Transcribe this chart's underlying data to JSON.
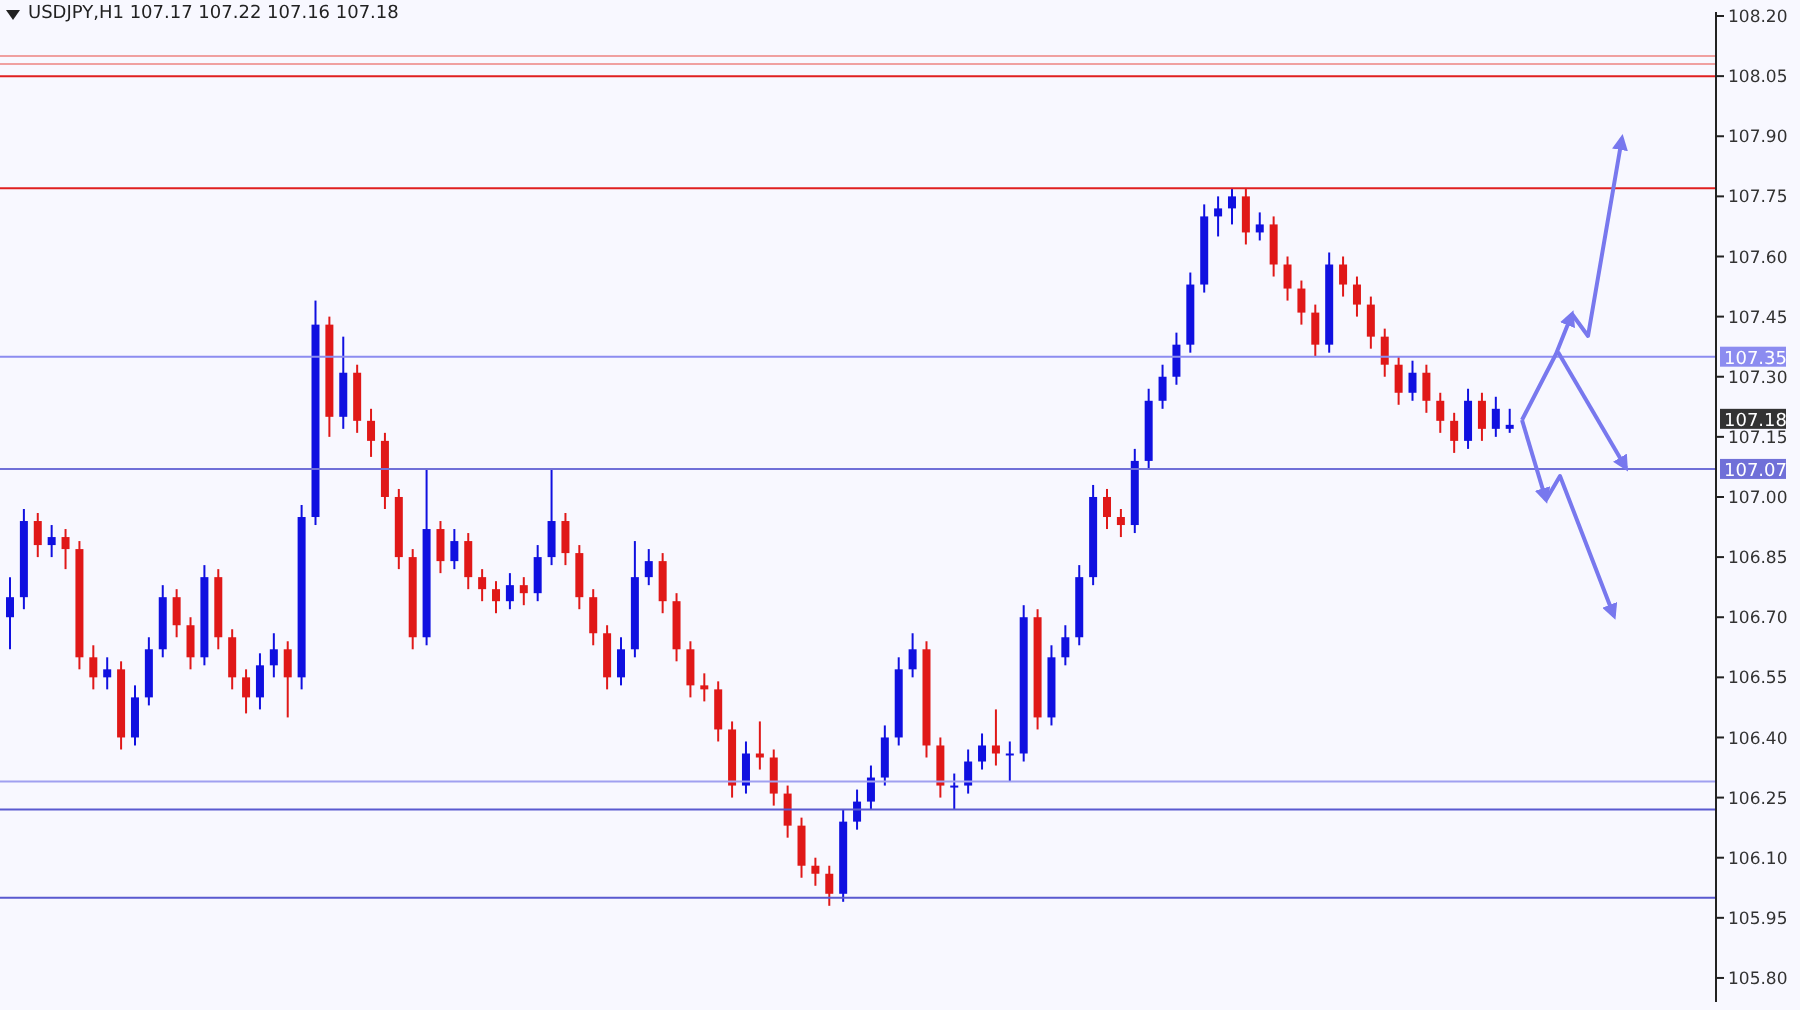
{
  "chart_data": {
    "type": "candlestick",
    "title": "USDJPY,H1  107.17 107.22 107.16 107.18",
    "categories": [
      null,
      null,
      null,
      null,
      null,
      null,
      null,
      null,
      null,
      null,
      null,
      null,
      null,
      null,
      null,
      null,
      null,
      null,
      null,
      null,
      null,
      null,
      null,
      null,
      null,
      null,
      null,
      null,
      null,
      null,
      null,
      null,
      null,
      null,
      null,
      null,
      null,
      null,
      null,
      null,
      null,
      null,
      null,
      null,
      null,
      null,
      null,
      null,
      null,
      null,
      null,
      null,
      null,
      null,
      null,
      null,
      null,
      null,
      null,
      null,
      null,
      null,
      null,
      null,
      null,
      null,
      null,
      null,
      null,
      null,
      null,
      null,
      null,
      null,
      null,
      null,
      null,
      null,
      null,
      null,
      null,
      null,
      null,
      null,
      null,
      null,
      null,
      null,
      null,
      null,
      null,
      null,
      null,
      null,
      null,
      null,
      null,
      null,
      null,
      null,
      null,
      null,
      null,
      null,
      null,
      null,
      null,
      null,
      null,
      null,
      null,
      null,
      null,
      null,
      null,
      null,
      null,
      null,
      null,
      null,
      null,
      null,
      null
    ],
    "ohlc": [
      [
        106.7,
        106.8,
        106.62,
        106.75
      ],
      [
        106.75,
        106.97,
        106.72,
        106.94
      ],
      [
        106.94,
        106.96,
        106.85,
        106.88
      ],
      [
        106.88,
        106.93,
        106.85,
        106.9
      ],
      [
        106.9,
        106.92,
        106.82,
        106.87
      ],
      [
        106.87,
        106.89,
        106.57,
        106.6
      ],
      [
        106.6,
        106.63,
        106.52,
        106.55
      ],
      [
        106.55,
        106.6,
        106.52,
        106.57
      ],
      [
        106.57,
        106.59,
        106.37,
        106.4
      ],
      [
        106.4,
        106.53,
        106.38,
        106.5
      ],
      [
        106.5,
        106.65,
        106.48,
        106.62
      ],
      [
        106.62,
        106.78,
        106.6,
        106.75
      ],
      [
        106.75,
        106.77,
        106.65,
        106.68
      ],
      [
        106.68,
        106.7,
        106.57,
        106.6
      ],
      [
        106.6,
        106.83,
        106.58,
        106.8
      ],
      [
        106.8,
        106.82,
        106.62,
        106.65
      ],
      [
        106.65,
        106.67,
        106.52,
        106.55
      ],
      [
        106.55,
        106.57,
        106.46,
        106.5
      ],
      [
        106.5,
        106.61,
        106.47,
        106.58
      ],
      [
        106.58,
        106.66,
        106.55,
        106.62
      ],
      [
        106.62,
        106.64,
        106.45,
        106.55
      ],
      [
        106.55,
        106.98,
        106.52,
        106.95
      ],
      [
        106.95,
        107.49,
        106.93,
        107.43
      ],
      [
        107.43,
        107.45,
        107.15,
        107.2
      ],
      [
        107.2,
        107.4,
        107.17,
        107.31
      ],
      [
        107.31,
        107.33,
        107.16,
        107.19
      ],
      [
        107.19,
        107.22,
        107.1,
        107.14
      ],
      [
        107.14,
        107.16,
        106.97,
        107.0
      ],
      [
        107.0,
        107.02,
        106.82,
        106.85
      ],
      [
        106.85,
        106.87,
        106.62,
        106.65
      ],
      [
        106.65,
        107.07,
        106.63,
        106.92
      ],
      [
        106.92,
        106.94,
        106.81,
        106.84
      ],
      [
        106.84,
        106.92,
        106.82,
        106.89
      ],
      [
        106.89,
        106.91,
        106.77,
        106.8
      ],
      [
        106.8,
        106.82,
        106.74,
        106.77
      ],
      [
        106.77,
        106.79,
        106.71,
        106.74
      ],
      [
        106.74,
        106.81,
        106.72,
        106.78
      ],
      [
        106.78,
        106.8,
        106.73,
        106.76
      ],
      [
        106.76,
        106.88,
        106.74,
        106.85
      ],
      [
        106.85,
        107.07,
        106.83,
        106.94
      ],
      [
        106.94,
        106.96,
        106.83,
        106.86
      ],
      [
        106.86,
        106.88,
        106.72,
        106.75
      ],
      [
        106.75,
        106.77,
        106.63,
        106.66
      ],
      [
        106.66,
        106.68,
        106.52,
        106.55
      ],
      [
        106.55,
        106.65,
        106.53,
        106.62
      ],
      [
        106.62,
        106.89,
        106.6,
        106.8
      ],
      [
        106.8,
        106.87,
        106.78,
        106.84
      ],
      [
        106.84,
        106.86,
        106.71,
        106.74
      ],
      [
        106.74,
        106.76,
        106.59,
        106.62
      ],
      [
        106.62,
        106.64,
        106.5,
        106.53
      ],
      [
        106.53,
        106.56,
        106.49,
        106.52
      ],
      [
        106.52,
        106.54,
        106.39,
        106.42
      ],
      [
        106.42,
        106.44,
        106.25,
        106.28
      ],
      [
        106.28,
        106.39,
        106.26,
        106.36
      ],
      [
        106.36,
        106.44,
        106.32,
        106.35
      ],
      [
        106.35,
        106.37,
        106.23,
        106.26
      ],
      [
        106.26,
        106.28,
        106.15,
        106.18
      ],
      [
        106.18,
        106.2,
        106.05,
        106.08
      ],
      [
        106.08,
        106.1,
        106.03,
        106.06
      ],
      [
        106.06,
        106.08,
        105.98,
        106.01
      ],
      [
        106.01,
        106.22,
        105.99,
        106.19
      ],
      [
        106.19,
        106.27,
        106.17,
        106.24
      ],
      [
        106.24,
        106.33,
        106.22,
        106.3
      ],
      [
        106.3,
        106.43,
        106.28,
        106.4
      ],
      [
        106.4,
        106.6,
        106.38,
        106.57
      ],
      [
        106.57,
        106.66,
        106.55,
        106.62
      ],
      [
        106.62,
        106.64,
        106.35,
        106.38
      ],
      [
        106.38,
        106.4,
        106.25,
        106.28
      ],
      [
        106.28,
        106.31,
        106.22,
        106.28
      ],
      [
        106.28,
        106.37,
        106.26,
        106.34
      ],
      [
        106.34,
        106.41,
        106.32,
        106.38
      ],
      [
        106.38,
        106.47,
        106.33,
        106.36
      ],
      [
        106.36,
        106.39,
        106.29,
        106.36
      ],
      [
        106.36,
        106.73,
        106.34,
        106.7
      ],
      [
        106.7,
        106.72,
        106.42,
        106.45
      ],
      [
        106.45,
        106.63,
        106.43,
        106.6
      ],
      [
        106.6,
        106.68,
        106.58,
        106.65
      ],
      [
        106.65,
        106.83,
        106.63,
        106.8
      ],
      [
        106.8,
        107.03,
        106.78,
        107.0
      ],
      [
        107.0,
        107.02,
        106.92,
        106.95
      ],
      [
        106.95,
        106.97,
        106.9,
        106.93
      ],
      [
        106.93,
        107.12,
        106.91,
        107.09
      ],
      [
        107.09,
        107.27,
        107.07,
        107.24
      ],
      [
        107.24,
        107.33,
        107.22,
        107.3
      ],
      [
        107.3,
        107.41,
        107.28,
        107.38
      ],
      [
        107.38,
        107.56,
        107.36,
        107.53
      ],
      [
        107.53,
        107.73,
        107.51,
        107.7
      ],
      [
        107.7,
        107.75,
        107.65,
        107.72
      ],
      [
        107.72,
        107.77,
        107.68,
        107.75
      ],
      [
        107.75,
        107.77,
        107.63,
        107.66
      ],
      [
        107.66,
        107.71,
        107.64,
        107.68
      ],
      [
        107.68,
        107.7,
        107.55,
        107.58
      ],
      [
        107.58,
        107.6,
        107.49,
        107.52
      ],
      [
        107.52,
        107.54,
        107.43,
        107.46
      ],
      [
        107.46,
        107.48,
        107.35,
        107.38
      ],
      [
        107.38,
        107.61,
        107.36,
        107.58
      ],
      [
        107.58,
        107.6,
        107.5,
        107.53
      ],
      [
        107.53,
        107.55,
        107.45,
        107.48
      ],
      [
        107.48,
        107.5,
        107.37,
        107.4
      ],
      [
        107.4,
        107.42,
        107.3,
        107.33
      ],
      [
        107.33,
        107.35,
        107.23,
        107.26
      ],
      [
        107.26,
        107.34,
        107.24,
        107.31
      ],
      [
        107.31,
        107.33,
        107.21,
        107.24
      ],
      [
        107.24,
        107.26,
        107.16,
        107.19
      ],
      [
        107.19,
        107.21,
        107.11,
        107.14
      ],
      [
        107.14,
        107.27,
        107.12,
        107.24
      ],
      [
        107.24,
        107.26,
        107.14,
        107.17
      ],
      [
        107.17,
        107.25,
        107.15,
        107.22
      ],
      [
        107.17,
        107.22,
        107.16,
        107.18
      ],
      null,
      null,
      null,
      null,
      null,
      null,
      null,
      null,
      null,
      null,
      null,
      null,
      null,
      null
    ],
    "colors": [
      "#1010e0",
      "#1010e0",
      "#e01818",
      "#1010e0",
      "#e01818",
      "#e01818",
      "#e01818",
      "#1010e0",
      "#e01818",
      "#1010e0",
      "#1010e0",
      "#1010e0",
      "#e01818",
      "#e01818",
      "#1010e0",
      "#e01818",
      "#e01818",
      "#e01818",
      "#1010e0",
      "#1010e0",
      "#e01818",
      "#1010e0",
      "#1010e0",
      "#e01818",
      "#1010e0",
      "#e01818",
      "#e01818",
      "#e01818",
      "#e01818",
      "#e01818",
      "#1010e0",
      "#e01818",
      "#1010e0",
      "#e01818",
      "#e01818",
      "#e01818",
      "#1010e0",
      "#e01818",
      "#1010e0",
      "#1010e0",
      "#e01818",
      "#e01818",
      "#e01818",
      "#e01818",
      "#1010e0",
      "#1010e0",
      "#1010e0",
      "#e01818",
      "#e01818",
      "#e01818",
      "#e01818",
      "#e01818",
      "#e01818",
      "#1010e0",
      "#e01818",
      "#e01818",
      "#e01818",
      "#e01818",
      "#e01818",
      "#e01818",
      "#1010e0",
      "#1010e0",
      "#1010e0",
      "#1010e0",
      "#1010e0",
      "#1010e0",
      "#e01818",
      "#e01818",
      "#1010e0",
      "#1010e0",
      "#1010e0",
      "#e01818",
      "#1010e0",
      "#1010e0",
      "#e01818",
      "#1010e0",
      "#1010e0",
      "#1010e0",
      "#1010e0",
      "#e01818",
      "#e01818",
      "#1010e0",
      "#1010e0",
      "#1010e0",
      "#1010e0",
      "#1010e0",
      "#1010e0",
      "#1010e0",
      "#1010e0",
      "#e01818",
      "#1010e0",
      "#e01818",
      "#e01818",
      "#e01818",
      "#e01818",
      "#1010e0",
      "#e01818",
      "#e01818",
      "#e01818",
      "#e01818",
      "#e01818",
      "#1010e0",
      "#e01818",
      "#e01818",
      "#e01818",
      "#1010e0",
      "#e01818",
      "#1010e0",
      "#1010e0",
      null,
      null,
      null,
      null,
      null,
      null,
      null,
      null,
      null,
      null,
      null,
      null,
      null,
      null
    ],
    "ylim": [
      105.74,
      108.21
    ],
    "yticks": [
      {
        "value": 105.8,
        "label": "105.80"
      },
      {
        "value": 105.95,
        "label": "105.95"
      },
      {
        "value": 106.1,
        "label": "106.10"
      },
      {
        "value": 106.25,
        "label": "106.25"
      },
      {
        "value": 106.4,
        "label": "106.40"
      },
      {
        "value": 106.55,
        "label": "106.55"
      },
      {
        "value": 106.7,
        "label": "106.70"
      },
      {
        "value": 106.85,
        "label": "106.85"
      },
      {
        "value": 107.0,
        "label": "107.00"
      },
      {
        "value": 107.15,
        "label": "107.15"
      },
      {
        "value": 107.3,
        "label": "107.30"
      },
      {
        "value": 107.45,
        "label": "107.45"
      },
      {
        "value": 107.6,
        "label": "107.60"
      },
      {
        "value": 107.75,
        "label": "107.75"
      },
      {
        "value": 107.9,
        "label": "107.90"
      },
      {
        "value": 108.05,
        "label": "108.05"
      },
      {
        "value": 108.2,
        "label": "108.20"
      }
    ],
    "ref_lines": [
      {
        "axis": "y",
        "value": 108.1,
        "color": "#f0a0a0"
      },
      {
        "axis": "y",
        "value": 108.08,
        "color": "#f0a0a0"
      },
      {
        "axis": "y",
        "value": 108.05,
        "color": "#e02020"
      },
      {
        "axis": "y",
        "value": 107.77,
        "color": "#e02020"
      },
      {
        "axis": "y",
        "value": 107.35,
        "label": "107.35",
        "color": "#8c8cf0"
      },
      {
        "axis": "y",
        "value": 107.07,
        "label": "107.07",
        "color": "#7070d8"
      },
      {
        "axis": "y",
        "value": 106.29,
        "color": "#a0a0f0"
      },
      {
        "axis": "y",
        "value": 106.22,
        "color": "#5a5ad0"
      },
      {
        "axis": "y",
        "value": 106.0,
        "color": "#5a5ad0"
      }
    ],
    "annotations": [
      "107.18"
    ],
    "grid": false,
    "legend": false
  }
}
